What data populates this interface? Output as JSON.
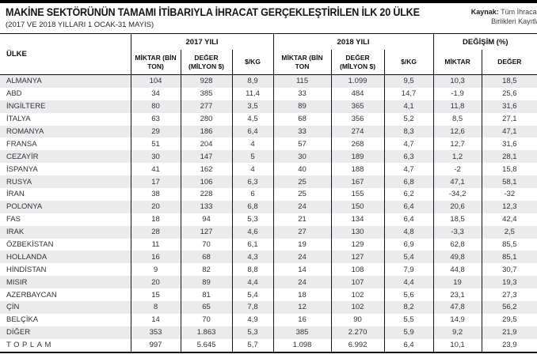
{
  "colors": {
    "top_bar": "#000000",
    "row_stripe": "#ebebed",
    "border": "#16161a",
    "text": "#323237"
  },
  "header": {
    "title": "MAKİNE SEKTÖRÜNÜN TAMAMI İTİBARIYLA İHRACAT GERÇEKLEŞTİRİLEN İLK 20 ÜLKE",
    "subtitle": "(2017 VE 2018 YILLARI 1 OCAK-31 MAYIS)",
    "source_label": "Kaynak:",
    "source_text": " Tüm İhracatçı Birlikleri Kayıtları"
  },
  "table": {
    "country_header": "ÜLKE",
    "groups": [
      {
        "label": "2017 YILI",
        "columns": [
          "MİKTAR (BİN TON)",
          "DEĞER (MİLYON $)",
          "$/KG"
        ]
      },
      {
        "label": "2018 YILI",
        "columns": [
          "MİKTAR (BİN TON",
          "DEĞER (MİLYON $)",
          "$/KG"
        ]
      },
      {
        "label": "DEĞİŞİM (%)",
        "columns": [
          "MİKTAR",
          "DEĞER"
        ]
      }
    ]
  },
  "chart_data": {
    "type": "table",
    "title": "MAKİNE SEKTÖRÜNÜN TAMAMI İTİBARIYLA İHRACAT GERÇEKLEŞTİRİLEN İLK 20 ÜLKE",
    "subtitle": "(2017 VE 2018 YILLARI 1 OCAK-31 MAYIS)",
    "source": "Kaynak: Tüm İhracatçı Birlikleri Kayıtları",
    "column_groups": [
      "2017 YILI",
      "2018 YILI",
      "DEĞİŞİM (%)"
    ],
    "columns": [
      "ÜLKE",
      "2017 MİKTAR (BİN TON)",
      "2017 DEĞER (MİLYON $)",
      "2017 $/KG",
      "2018 MİKTAR (BİN TON)",
      "2018 DEĞER (MİLYON $)",
      "2018 $/KG",
      "DEĞİŞİM MİKTAR (%)",
      "DEĞİŞİM DEĞER (%)"
    ],
    "rows": [
      {
        "country": "ALMANYA",
        "values": [
          "104",
          "928",
          "8,9",
          "115",
          "1.099",
          "9,5",
          "10,3",
          "18,5"
        ]
      },
      {
        "country": "ABD",
        "values": [
          "34",
          "385",
          "11,4",
          "33",
          "484",
          "14,7",
          "-1,9",
          "25,6"
        ]
      },
      {
        "country": "İNGİLTERE",
        "values": [
          "80",
          "277",
          "3,5",
          "89",
          "365",
          "4,1",
          "11,8",
          "31,6"
        ]
      },
      {
        "country": "İTALYA",
        "values": [
          "63",
          "280",
          "4,5",
          "68",
          "356",
          "5,2",
          "8,5",
          "27,1"
        ]
      },
      {
        "country": "ROMANYA",
        "values": [
          "29",
          "186",
          "6,4",
          "33",
          "274",
          "8,3",
          "12,6",
          "47,1"
        ]
      },
      {
        "country": "FRANSA",
        "values": [
          "51",
          "204",
          "4",
          "57",
          "268",
          "4,7",
          "12,7",
          "31,6"
        ]
      },
      {
        "country": "CEZAYİR",
        "values": [
          "30",
          "147",
          "5",
          "30",
          "189",
          "6,3",
          "1,2",
          "28,1"
        ]
      },
      {
        "country": "İSPANYA",
        "values": [
          "41",
          "162",
          "4",
          "40",
          "188",
          "4,7",
          "-2",
          "15,8"
        ]
      },
      {
        "country": "RUSYA",
        "values": [
          "17",
          "106",
          "6,3",
          "25",
          "167",
          "6,8",
          "47,1",
          "58,1"
        ]
      },
      {
        "country": "İRAN",
        "values": [
          "38",
          "228",
          "6",
          "25",
          "155",
          "6,2",
          "-34,2",
          "-32"
        ]
      },
      {
        "country": "POLONYA",
        "values": [
          "20",
          "133",
          "6,8",
          "24",
          "150",
          "6,4",
          "20,6",
          "12,3"
        ]
      },
      {
        "country": "FAS",
        "values": [
          "18",
          "94",
          "5,3",
          "21",
          "134",
          "6,4",
          "18,5",
          "42,4"
        ]
      },
      {
        "country": "IRAK",
        "values": [
          "28",
          "127",
          "4,6",
          "27",
          "130",
          "4,8",
          "-3,3",
          "2,5"
        ]
      },
      {
        "country": "ÖZBEKİSTAN",
        "values": [
          "11",
          "70",
          "6,1",
          "19",
          "129",
          "6,9",
          "62,8",
          "85,5"
        ]
      },
      {
        "country": "HOLLANDA",
        "values": [
          "16",
          "68",
          "4,3",
          "24",
          "127",
          "5,4",
          "49,8",
          "85,1"
        ]
      },
      {
        "country": "HİNDİSTAN",
        "values": [
          "9",
          "82",
          "8,8",
          "14",
          "108",
          "7,9",
          "44,8",
          "30,7"
        ]
      },
      {
        "country": "MISIR",
        "values": [
          "20",
          "89",
          "4,4",
          "24",
          "107",
          "4,4",
          "19",
          "19,3"
        ]
      },
      {
        "country": "AZERBAYCAN",
        "values": [
          "15",
          "81",
          "5,4",
          "18",
          "102",
          "5,6",
          "23,1",
          "27,3"
        ]
      },
      {
        "country": "ÇİN",
        "values": [
          "8",
          "65",
          "7,8",
          "12",
          "102",
          "8,2",
          "47,8",
          "56,2"
        ]
      },
      {
        "country": "BELÇİKA",
        "values": [
          "14",
          "70",
          "4,9",
          "16",
          "90",
          "5,5",
          "14,9",
          "29,5"
        ]
      },
      {
        "country": "DİĞER",
        "values": [
          "353",
          "1.863",
          "5,3",
          "385",
          "2.270",
          "5,9",
          "9,2",
          "21,9"
        ]
      },
      {
        "country": "TOPLAM",
        "values": [
          "997",
          "5.645",
          "5,7",
          "1.098",
          "6.992",
          "6,4",
          "10,1",
          "23,9"
        ],
        "is_total": true
      }
    ]
  }
}
